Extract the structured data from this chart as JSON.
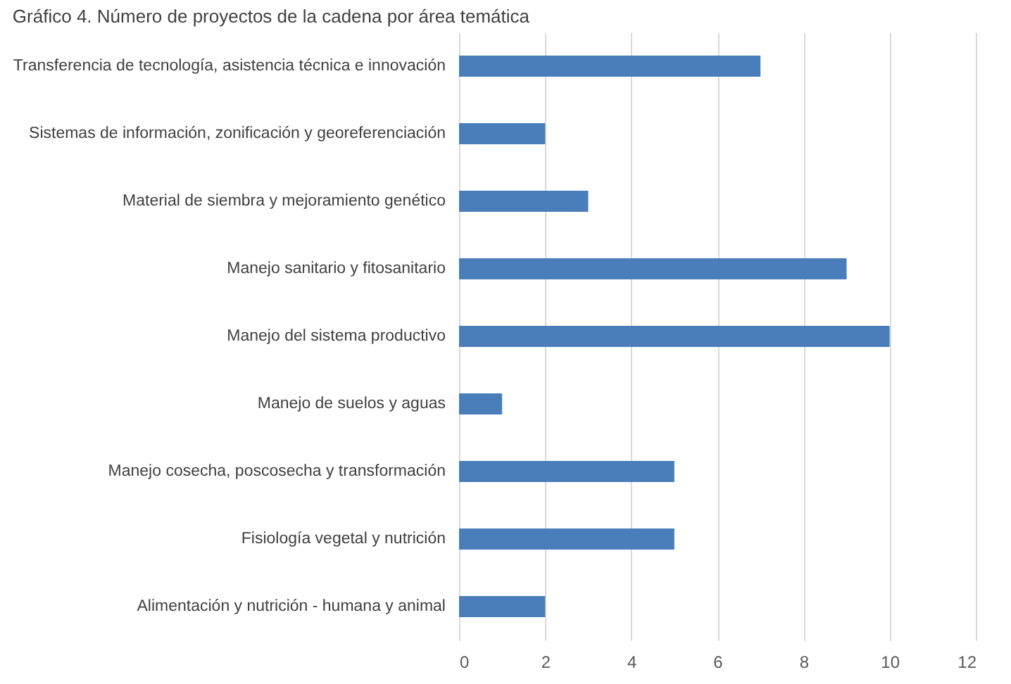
{
  "chart_data": {
    "type": "bar",
    "orientation": "horizontal",
    "title": "Gráfico 4. Número de proyectos de la cadena por área temática",
    "categories": [
      "Transferencia de tecnología, asistencia técnica e innovación",
      "Sistemas de información, zonificación y georeferenciación",
      "Material de siembra y mejoramiento genético",
      "Manejo sanitario y fitosanitario",
      "Manejo del sistema productivo",
      "Manejo de suelos y aguas",
      "Manejo cosecha, poscosecha y transformación",
      "Fisiología vegetal y nutrición",
      "Alimentación y nutrición - humana y animal"
    ],
    "values": [
      7,
      2,
      3,
      9,
      10,
      1,
      5,
      5,
      2
    ],
    "color": "#4a7ebb",
    "xlim": [
      0,
      12
    ],
    "xticks": [
      0,
      2,
      4,
      6,
      8,
      10,
      12
    ],
    "grid": "x"
  }
}
